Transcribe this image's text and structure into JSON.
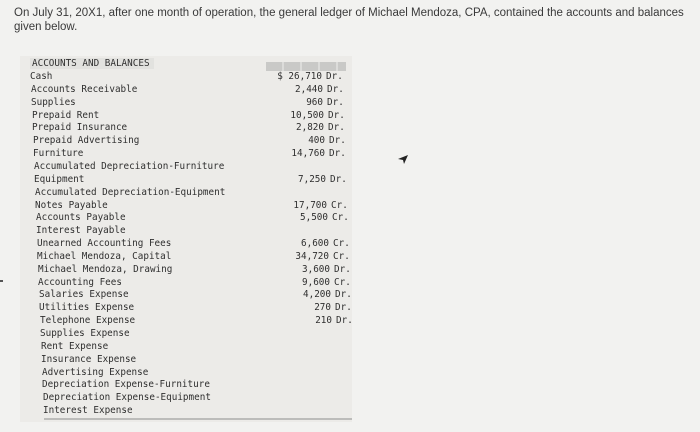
{
  "intro": "On July 31, 20X1, after one month of operation, the general ledger of Michael Mendoza, CPA, contained the accounts and balances given below.",
  "ledger": {
    "title": "ACCOUNTS AND BALANCES",
    "rows": [
      {
        "name": "Cash",
        "amount": "$ 26,710",
        "dc": "Dr."
      },
      {
        "name": "Accounts Receivable",
        "amount": "2,440",
        "dc": "Dr."
      },
      {
        "name": "Supplies",
        "amount": "960",
        "dc": "Dr."
      },
      {
        "name": "Prepaid Rent",
        "amount": "10,500",
        "dc": "Dr."
      },
      {
        "name": "Prepaid Insurance",
        "amount": "2,820",
        "dc": "Dr."
      },
      {
        "name": "Prepaid Advertising",
        "amount": "400",
        "dc": "Dr."
      },
      {
        "name": "Furniture",
        "amount": "14,760",
        "dc": "Dr."
      },
      {
        "name": "Accumulated Depreciation-Furniture",
        "amount": "",
        "dc": ""
      },
      {
        "name": "Equipment",
        "amount": "7,250",
        "dc": "Dr."
      },
      {
        "name": "Accumulated Depreciation-Equipment",
        "amount": "",
        "dc": ""
      },
      {
        "name": "Notes Payable",
        "amount": "17,700",
        "dc": "Cr."
      },
      {
        "name": "Accounts Payable",
        "amount": "5,500",
        "dc": "Cr."
      },
      {
        "name": "Interest Payable",
        "amount": "",
        "dc": ""
      },
      {
        "name": "Unearned Accounting Fees",
        "amount": "6,600",
        "dc": "Cr."
      },
      {
        "name": "Michael Mendoza, Capital",
        "amount": "34,720",
        "dc": "Cr."
      },
      {
        "name": "Michael Mendoza, Drawing",
        "amount": "3,600",
        "dc": "Dr."
      },
      {
        "name": "Accounting Fees",
        "amount": "9,600",
        "dc": "Cr."
      },
      {
        "name": "Salaries Expense",
        "amount": "4,200",
        "dc": "Dr."
      },
      {
        "name": "Utilities Expense",
        "amount": "270",
        "dc": "Dr."
      },
      {
        "name": "Telephone Expense",
        "amount": "210",
        "dc": "Dr."
      },
      {
        "name": "Supplies Expense",
        "amount": "",
        "dc": ""
      },
      {
        "name": "Rent Expense",
        "amount": "",
        "dc": ""
      },
      {
        "name": "Insurance Expense",
        "amount": "",
        "dc": ""
      },
      {
        "name": "Advertising Expense",
        "amount": "",
        "dc": ""
      },
      {
        "name": "Depreciation Expense-Furniture",
        "amount": "",
        "dc": ""
      },
      {
        "name": "Depreciation Expense-Equipment",
        "amount": "",
        "dc": ""
      },
      {
        "name": "Interest Expense",
        "amount": "",
        "dc": ""
      }
    ]
  }
}
